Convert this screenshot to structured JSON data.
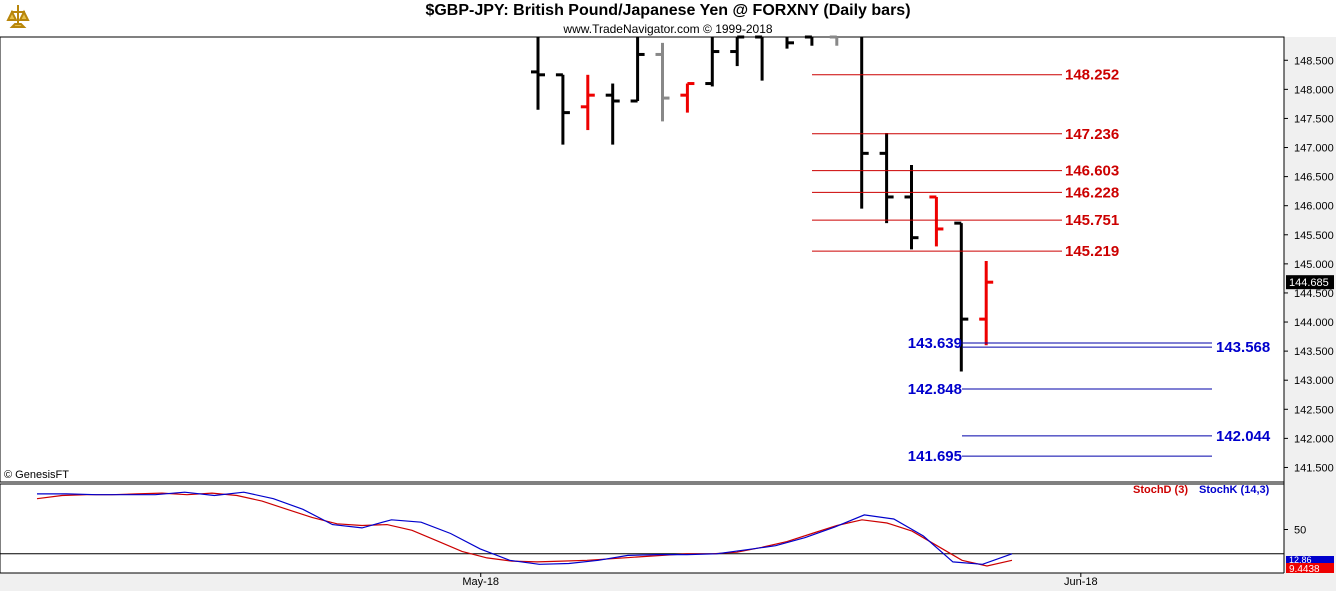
{
  "header": {
    "title": "$GBP-JPY:  British Pound/Japanese Yen @ FORXNY  (Daily bars)",
    "subtitle": "www.TradeNavigator.com © 1999-2018",
    "copyright": "© GenesisFT"
  },
  "chart_data": [
    {
      "type": "ohlc",
      "ylim": [
        141.25,
        148.9
      ],
      "yticks": [
        "148.500",
        "148.000",
        "147.500",
        "147.000",
        "146.500",
        "146.000",
        "145.500",
        "145.000",
        "144.500",
        "144.000",
        "143.500",
        "143.000",
        "142.500",
        "142.000",
        "141.500"
      ],
      "last_price": "144.685",
      "x_labels": [
        {
          "label": "May-18",
          "index": -2.3
        },
        {
          "label": "Jun-18",
          "index": 21.8
        }
      ],
      "bars": [
        {
          "h": 149.0,
          "l": 147.65,
          "o": 148.3,
          "c": 148.25,
          "color": "black"
        },
        {
          "h": 148.25,
          "l": 147.05,
          "o": 148.25,
          "c": 147.6,
          "color": "black"
        },
        {
          "h": 148.25,
          "l": 147.3,
          "o": 147.7,
          "c": 147.9,
          "color": "red"
        },
        {
          "h": 148.1,
          "l": 147.05,
          "o": 147.9,
          "c": 147.8,
          "color": "black"
        },
        {
          "h": 149.0,
          "l": 147.8,
          "o": 147.8,
          "c": 148.6,
          "color": "black"
        },
        {
          "h": 148.8,
          "l": 147.45,
          "o": 148.6,
          "c": 147.85,
          "color": "gray"
        },
        {
          "h": 148.1,
          "l": 147.6,
          "o": 147.9,
          "c": 148.1,
          "color": "red"
        },
        {
          "h": 149.0,
          "l": 148.05,
          "o": 148.1,
          "c": 148.65,
          "color": "black"
        },
        {
          "h": 149.0,
          "l": 148.4,
          "o": 148.65,
          "c": 148.9,
          "color": "black"
        },
        {
          "h": 149.0,
          "l": 148.15,
          "o": 148.9,
          "c": 148.95,
          "color": "black"
        },
        {
          "h": 148.95,
          "l": 148.7,
          "o": 148.95,
          "c": 148.8,
          "color": "black"
        },
        {
          "h": 148.95,
          "l": 148.75,
          "o": 148.9,
          "c": 148.95,
          "color": "black"
        },
        {
          "h": 148.95,
          "l": 148.75,
          "o": 148.9,
          "c": 148.95,
          "color": "gray"
        },
        {
          "h": 149.0,
          "l": 145.95,
          "o": 148.95,
          "c": 146.9,
          "color": "black"
        },
        {
          "h": 147.25,
          "l": 145.7,
          "o": 146.9,
          "c": 146.15,
          "color": "black"
        },
        {
          "h": 146.7,
          "l": 145.25,
          "o": 146.15,
          "c": 145.45,
          "color": "black"
        },
        {
          "h": 146.15,
          "l": 145.3,
          "o": 146.15,
          "c": 145.6,
          "color": "red"
        },
        {
          "h": 145.7,
          "l": 143.15,
          "o": 145.7,
          "c": 144.05,
          "color": "black"
        },
        {
          "h": 145.05,
          "l": 143.6,
          "o": 144.05,
          "c": 144.685,
          "color": "red"
        }
      ],
      "levels_red": [
        "148.252",
        "147.236",
        "146.603",
        "146.228",
        "145.751",
        "145.219"
      ],
      "levels_blue_left": [
        "143.639",
        "142.848",
        "141.695"
      ],
      "levels_blue_right": [
        "143.568",
        "142.044"
      ]
    },
    {
      "type": "line",
      "ylim": [
        0,
        100
      ],
      "yticks": [
        "50"
      ],
      "series": [
        {
          "name": "StochD (3)",
          "color": "#cc0000",
          "values": [
            88,
            92,
            93,
            93,
            94,
            95,
            93,
            95,
            92,
            85,
            75,
            65,
            57,
            55,
            56,
            49,
            36,
            23,
            15,
            11,
            10,
            11,
            12,
            14,
            16,
            18,
            20,
            20,
            22,
            28,
            35,
            45,
            55,
            62,
            58,
            48,
            30,
            12,
            5,
            12
          ]
        },
        {
          "name": "StochK (14,3)",
          "color": "#0000cc",
          "values": [
            94,
            94,
            93,
            93,
            93,
            96,
            92,
            96,
            88,
            75,
            56,
            52,
            62,
            59,
            45,
            26,
            12,
            7,
            8,
            12,
            18,
            19,
            19,
            20,
            25,
            30,
            40,
            53,
            68,
            63,
            42,
            10,
            7,
            20
          ]
        }
      ],
      "last_values": [
        "12.86",
        "9.4438"
      ]
    }
  ]
}
